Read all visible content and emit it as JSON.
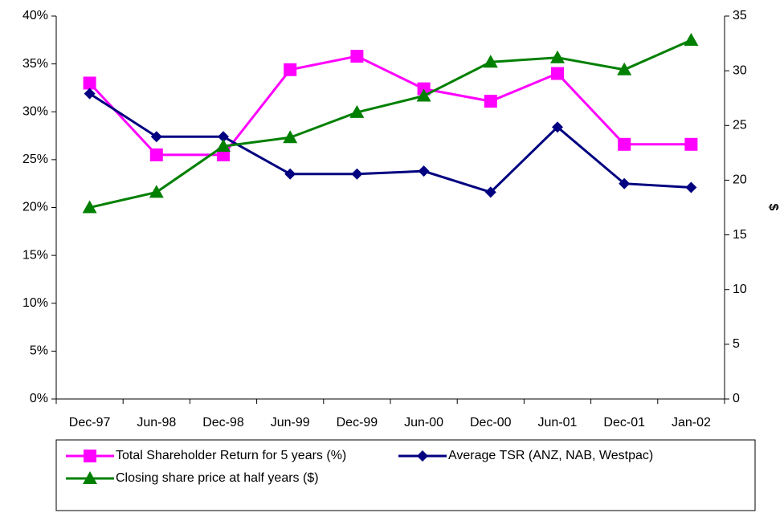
{
  "chart_data": {
    "type": "line",
    "categories": [
      "Dec-97",
      "Jun-98",
      "Dec-98",
      "Jun-99",
      "Dec-99",
      "Jun-00",
      "Dec-00",
      "Jun-01",
      "Dec-01",
      "Jan-02"
    ],
    "series": [
      {
        "name": "Total Shareholder Return for 5 years (%)",
        "color": "#ff00ff",
        "marker": "square",
        "values": [
          33.0,
          25.5,
          25.5,
          34.4,
          35.8,
          32.4,
          31.1,
          34.0,
          26.6,
          26.6
        ]
      },
      {
        "name": "Average TSR (ANZ, NAB, Westpac)",
        "color": "#000080",
        "marker": "diamond",
        "values": [
          31.9,
          27.4,
          27.4,
          23.5,
          23.5,
          23.8,
          21.6,
          28.4,
          22.5,
          22.1
        ]
      },
      {
        "name": "Closing share price at half years ($)",
        "color": "#008000",
        "marker": "triangle",
        "axis": "y2",
        "values": [
          17.5,
          18.9,
          23.1,
          23.9,
          26.2,
          27.7,
          30.8,
          31.2,
          30.1,
          32.8
        ]
      }
    ],
    "ylim": [
      0,
      40
    ],
    "yticks": [
      {
        "value": 0,
        "label": "0%"
      },
      {
        "value": 5,
        "label": "5%"
      },
      {
        "value": 10,
        "label": "10%"
      },
      {
        "value": 15,
        "label": "15%"
      },
      {
        "value": 20,
        "label": "20%"
      },
      {
        "value": 25,
        "label": "25%"
      },
      {
        "value": 30,
        "label": "30%"
      },
      {
        "value": 35,
        "label": "35%"
      },
      {
        "value": 40,
        "label": "40%"
      }
    ],
    "y2lim": [
      0,
      35
    ],
    "y2ticks": [
      0,
      5,
      10,
      15,
      20,
      25,
      30,
      35
    ],
    "y2_label": "$",
    "grid": false
  }
}
